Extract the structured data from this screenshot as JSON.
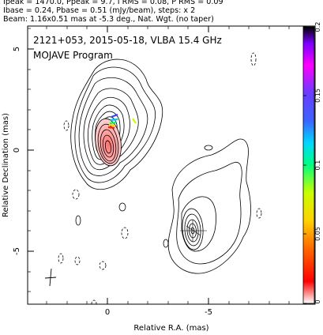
{
  "header": {
    "line1": "Ipeak = 1470.0, Ppeak = 9.7, I RMS = 0.08, P RMS = 0.09",
    "line2": "Ibase = 0.24, Pbase = 0.51 (mJy/beam), steps: x 2",
    "line3": "Beam: 1.16x0.51 mas at -5.3 deg., Nat. Wgt. (no taper)"
  },
  "plot": {
    "source_label": "2121+053, 2015-05-18, VLBA 15.4 GHz",
    "program_label": "MOJAVE Program",
    "x_axis_label": "Relative R.A. (mas)",
    "y_axis_label": "Relative Declination (mas)",
    "x_ticks": [
      "0",
      "-5"
    ],
    "y_ticks": [
      "5",
      "0",
      "-5"
    ]
  },
  "colorbar": {
    "ticks": [
      "0.2",
      "0.15",
      "0.1",
      "0.05",
      "0"
    ],
    "colors": [
      "#000000",
      "#8c00ff",
      "#ff00ff",
      "#4b4bff",
      "#00c8ff",
      "#00ff64",
      "#c8ff00",
      "#ffff00",
      "#ff9600",
      "#ff0000",
      "#ffffff"
    ]
  }
}
